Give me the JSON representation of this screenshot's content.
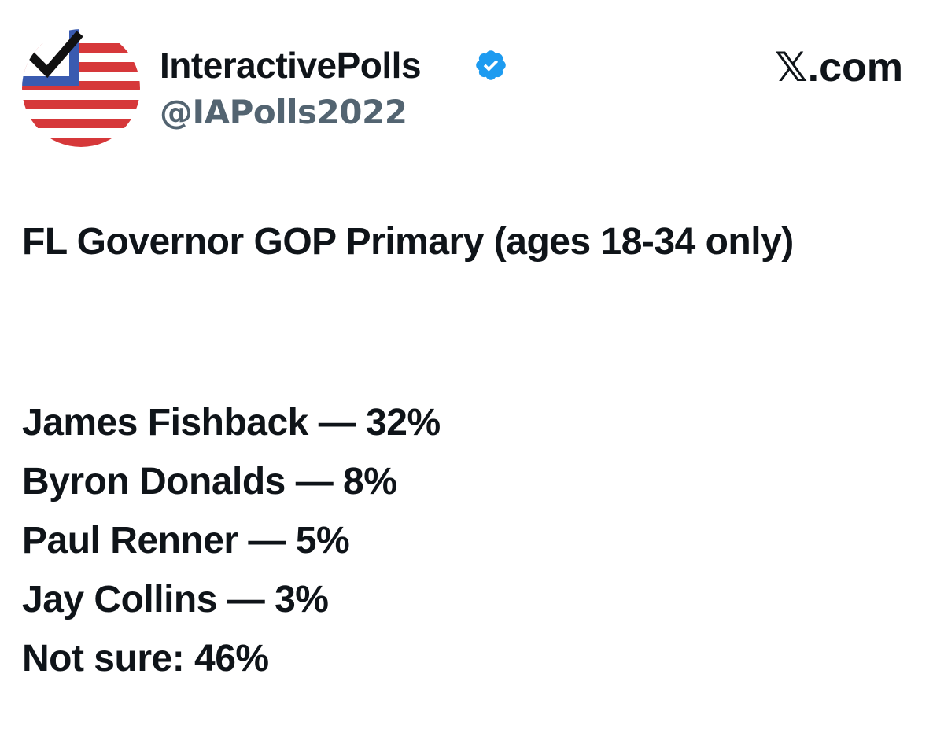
{
  "header": {
    "name": "InteractivePolls",
    "handle": "@IAPolls2022",
    "site": "𝕏.com"
  },
  "post": {
    "title": "FL Governor GOP Primary (ages 18-34 only)",
    "results": [
      "James Fishback — 32%",
      "Byron Donalds — 8%",
      "Paul Renner — 5%",
      "Jay Collins — 3%",
      "Not sure: 46%"
    ]
  }
}
